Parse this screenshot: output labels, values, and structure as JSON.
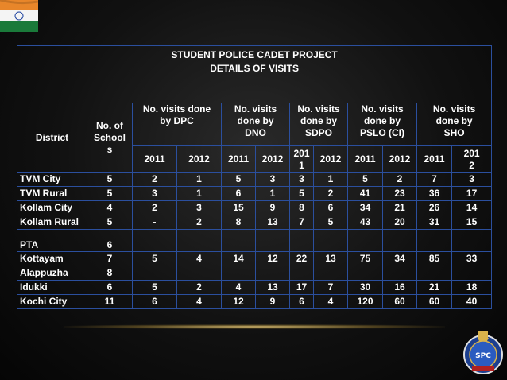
{
  "title_line1": "STUDENT POLICE CADET PROJECT",
  "title_line2": "DETAILS OF VISITS",
  "headers": {
    "district": "District",
    "schools_l1": "No.  of",
    "schools_l2": "School",
    "schools_l3": "s",
    "dpc_l1": "No. visits done",
    "dpc_l2": "by DPC",
    "dno_l1": "No. visits",
    "dno_l2": "done by",
    "dno_l3": "DNO",
    "sdpo_l1": "No. visits",
    "sdpo_l2": "done by",
    "sdpo_l3": "SDPO",
    "pslo_l1": "No. visits",
    "pslo_l2": "done by",
    "pslo_l3": "PSLO (CI)",
    "sho_l1": "No. visits",
    "sho_l2": "done by",
    "sho_l3": "SHO"
  },
  "years": [
    "2011",
    "2012",
    "2011",
    "2012",
    "201",
    "1",
    "2012",
    "2011",
    "2012",
    "2011",
    "201",
    "2"
  ],
  "rows": [
    {
      "district": "TVM City",
      "schools": "5",
      "dpc11": "2",
      "dpc12": "1",
      "dno11": "5",
      "dno12": "3",
      "sdpo11": "3",
      "sdpo12": "1",
      "pslo11": "5",
      "pslo12": "2",
      "sho11": "7",
      "sho12": "3"
    },
    {
      "district": "TVM Rural",
      "schools": "5",
      "dpc11": "3",
      "dpc12": "1",
      "dno11": "6",
      "dno12": "1",
      "sdpo11": "5",
      "sdpo12": "2",
      "pslo11": "41",
      "pslo12": "23",
      "sho11": "36",
      "sho12": "17"
    },
    {
      "district": "Kollam City",
      "schools": "4",
      "dpc11": "2",
      "dpc12": "3",
      "dno11": "15",
      "dno12": "9",
      "sdpo11": "8",
      "sdpo12": "6",
      "pslo11": "34",
      "pslo12": "21",
      "sho11": "26",
      "sho12": "14"
    },
    {
      "district": "Kollam Rural",
      "schools": "5",
      "dpc11": "-",
      "dpc12": "2",
      "dno11": "8",
      "dno12": "13",
      "sdpo11": "7",
      "sdpo12": "5",
      "pslo11": "43",
      "pslo12": "20",
      "sho11": "31",
      "sho12": "15"
    },
    {
      "district": "PTA",
      "schools": "6",
      "dpc11": "",
      "dpc12": "",
      "dno11": "",
      "dno12": "",
      "sdpo11": "",
      "sdpo12": "",
      "pslo11": "",
      "pslo12": "",
      "sho11": "",
      "sho12": ""
    },
    {
      "district": "Kottayam",
      "schools": "7",
      "dpc11": "5",
      "dpc12": "4",
      "dno11": "14",
      "dno12": "12",
      "sdpo11": "22",
      "sdpo12": "13",
      "pslo11": "75",
      "pslo12": "34",
      "sho11": "85",
      "sho12": "33"
    },
    {
      "district": "Alappuzha",
      "schools": "8",
      "dpc11": "",
      "dpc12": "",
      "dno11": "",
      "dno12": "",
      "sdpo11": "",
      "sdpo12": "",
      "pslo11": "",
      "pslo12": "",
      "sho11": "",
      "sho12": ""
    },
    {
      "district": "Idukki",
      "schools": "6",
      "dpc11": "5",
      "dpc12": "2",
      "dno11": "4",
      "dno12": "13",
      "sdpo11": "17",
      "sdpo12": "7",
      "pslo11": "30",
      "pslo12": "16",
      "sho11": "21",
      "sho12": "18"
    },
    {
      "district": "Kochi City",
      "schools": "11",
      "dpc11": "6",
      "dpc12": "4",
      "dno11": "12",
      "dno12": "9",
      "sdpo11": "6",
      "sdpo12": "4",
      "pslo11": "120",
      "pslo12": "60",
      "sho11": "60",
      "sho12": "40"
    }
  ],
  "logo": {
    "text": "SPC"
  },
  "colors": {
    "border": "#2b4f9e",
    "saffron": "#e8862a",
    "green": "#1a7a3a",
    "logo_blue": "#1c3f8f"
  }
}
